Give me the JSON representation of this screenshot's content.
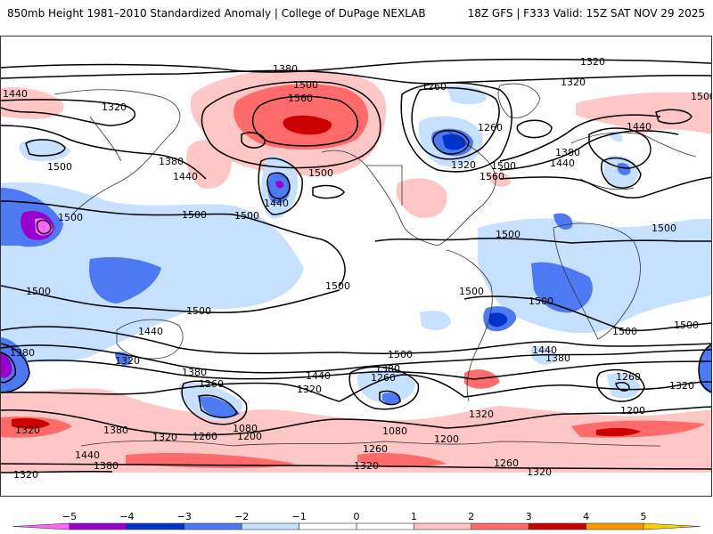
{
  "header": {
    "title_left": "850mb Height 1981–2010 Standardized Anomaly | College of DuPage NEXLAB",
    "title_right": "18Z GFS | F333 Valid: 15Z SAT NOV 29 2025"
  },
  "map": {
    "variable": "850mb Height",
    "units": "m",
    "shading": "Standardized Anomaly (1981–2010 climatology)",
    "model": "GFS",
    "run": "18Z",
    "forecast_hour": "F333",
    "valid": "15Z SAT NOV 29 2025",
    "contour_labels": [
      {
        "id": "nh-1380-pacific",
        "text": "1380"
      },
      {
        "id": "nh-1320-atlantic-top",
        "text": "1320"
      },
      {
        "id": "nh-1320-greenland",
        "text": "1320"
      },
      {
        "id": "nh-1440-west",
        "text": "1440"
      },
      {
        "id": "nh-1320-siberia",
        "text": "1320"
      },
      {
        "id": "nh-1500-alaska",
        "text": "1500"
      },
      {
        "id": "nh-1560-alaska",
        "text": "1560"
      },
      {
        "id": "nh-1260-canada",
        "text": "1260"
      },
      {
        "id": "nh-1260-greenland",
        "text": "1260"
      },
      {
        "id": "nh-1440-europe",
        "text": "1440"
      },
      {
        "id": "nh-1500-siberia-east",
        "text": "1500"
      },
      {
        "id": "nh-1380-atlantic",
        "text": "1380"
      },
      {
        "id": "nh-1440-atlantic",
        "text": "1440"
      },
      {
        "id": "nh-1500-atlantic",
        "text": "1500"
      },
      {
        "id": "nh-1560-atlantic",
        "text": "1560"
      },
      {
        "id": "nh-1320-labrador",
        "text": "1320"
      },
      {
        "id": "nh-1380-japan",
        "text": "1380"
      },
      {
        "id": "nh-1440-japan",
        "text": "1440"
      },
      {
        "id": "nh-1500-nwpac",
        "text": "1500"
      },
      {
        "id": "nh-1500-pac-a",
        "text": "1500"
      },
      {
        "id": "nh-1500-pac-b",
        "text": "1500"
      },
      {
        "id": "nh-1440-pac-low",
        "text": "1440"
      },
      {
        "id": "nh-1500-pac-c",
        "text": "1500"
      },
      {
        "id": "trop-1500-china",
        "text": "1500"
      },
      {
        "id": "trop-1500-atl",
        "text": "1500"
      },
      {
        "id": "trop-1500-india",
        "text": "1500"
      },
      {
        "id": "trop-1500-africa",
        "text": "1500"
      },
      {
        "id": "trop-1500-io-a",
        "text": "1500"
      },
      {
        "id": "trop-1500-io-b",
        "text": "1500"
      },
      {
        "id": "trop-1500-sa",
        "text": "1500"
      },
      {
        "id": "sh-1500-io-left",
        "text": "1500"
      },
      {
        "id": "sh-1500-pac",
        "text": "1500"
      },
      {
        "id": "sh-1500-epac",
        "text": "1500"
      },
      {
        "id": "sh-1500-satl",
        "text": "1500"
      },
      {
        "id": "sh-1440-aus",
        "text": "1440"
      },
      {
        "id": "sh-1380-io",
        "text": "1380"
      },
      {
        "id": "sh-1320-aus",
        "text": "1320"
      },
      {
        "id": "sh-1380-tasman",
        "text": "1380"
      },
      {
        "id": "sh-1260-pac",
        "text": "1260"
      },
      {
        "id": "sh-1320-pac",
        "text": "1320"
      },
      {
        "id": "sh-1440-pac",
        "text": "1440"
      },
      {
        "id": "sh-1380-pac",
        "text": "1380"
      },
      {
        "id": "sh-1260-pac2",
        "text": "1260"
      },
      {
        "id": "sh-1080-pac",
        "text": "1080"
      },
      {
        "id": "sh-1200-pac",
        "text": "1200"
      },
      {
        "id": "sh-1080-pac2",
        "text": "1080"
      },
      {
        "id": "sh-1200-pac2",
        "text": "1200"
      },
      {
        "id": "sh-1320-left",
        "text": "1320"
      },
      {
        "id": "sh-1380-left",
        "text": "1380"
      },
      {
        "id": "sh-1320-mid",
        "text": "1320"
      },
      {
        "id": "sh-1260-mid",
        "text": "1260"
      },
      {
        "id": "sh-1440-left",
        "text": "1440"
      },
      {
        "id": "sh-1380-bottom",
        "text": "1380"
      },
      {
        "id": "sh-1320-bottom-left",
        "text": "1320"
      },
      {
        "id": "sh-1260-ant",
        "text": "1260"
      },
      {
        "id": "sh-1320-ant",
        "text": "1320"
      },
      {
        "id": "sh-1320-samerica",
        "text": "1320"
      },
      {
        "id": "sh-1440-satl",
        "text": "1440"
      },
      {
        "id": "sh-1380-satl",
        "text": "1380"
      },
      {
        "id": "sh-1260-io",
        "text": "1260"
      },
      {
        "id": "sh-1320-io",
        "text": "1320"
      },
      {
        "id": "sh-1200-io",
        "text": "1200"
      },
      {
        "id": "sh-1260-io-bottom",
        "text": "1260"
      },
      {
        "id": "sh-1320-io-bottom",
        "text": "1320"
      },
      {
        "id": "sh-1380-left-edge",
        "text": "1380"
      }
    ]
  },
  "colorbar": {
    "ticks": [
      "−5",
      "−4",
      "−3",
      "−2",
      "−1",
      "0",
      "1",
      "2",
      "3",
      "4",
      "5"
    ],
    "tick_values": [
      -5,
      -4,
      -3,
      -2,
      -1,
      0,
      1,
      2,
      3,
      4,
      5
    ],
    "bins": [
      {
        "from": -6,
        "to": -5,
        "color": "#ff66ff"
      },
      {
        "from": -5,
        "to": -4,
        "color": "#9900cc"
      },
      {
        "from": -4,
        "to": -3,
        "color": "#0033cc"
      },
      {
        "from": -3,
        "to": -2,
        "color": "#4d79f2"
      },
      {
        "from": -2,
        "to": -1,
        "color": "#c6e0ff"
      },
      {
        "from": -1,
        "to": 0,
        "color": "#ffffff"
      },
      {
        "from": 0,
        "to": 1,
        "color": "#ffffff"
      },
      {
        "from": 1,
        "to": 2,
        "color": "#ffc6c6"
      },
      {
        "from": 2,
        "to": 3,
        "color": "#ff6b6b"
      },
      {
        "from": 3,
        "to": 4,
        "color": "#cc0000"
      },
      {
        "from": 4,
        "to": 5,
        "color": "#ff9900"
      },
      {
        "from": 5,
        "to": 6,
        "color": "#ffcc00"
      }
    ]
  },
  "colors": {
    "ocean": "#ffffff",
    "contour": "#000000",
    "coastline": "#333333",
    "neg1": "#c6e0ff",
    "neg2": "#4d79f2",
    "neg3": "#0033cc",
    "neg4": "#9900cc",
    "neg5": "#ff66ff",
    "pos1": "#ffc6c6",
    "pos2": "#ff6b6b",
    "pos3": "#cc0000"
  }
}
